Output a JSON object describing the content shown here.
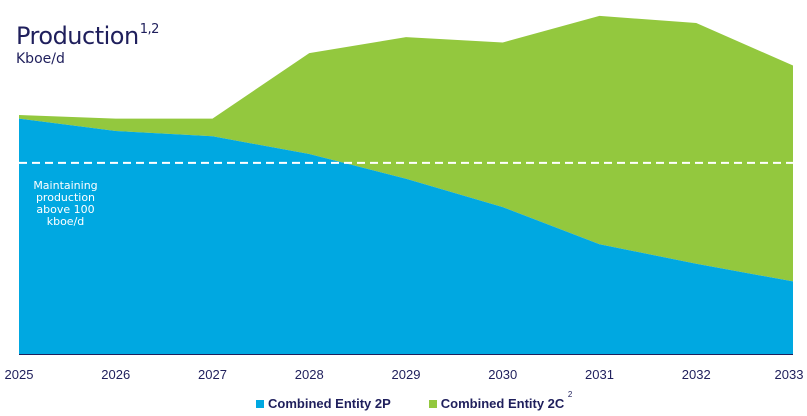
{
  "chart_data": {
    "type": "area",
    "stacked": true,
    "title": "Production",
    "title_superscript": "1,2",
    "subtitle": "Kboe/d",
    "x": [
      "2025",
      "2026",
      "2027",
      "2028",
      "2029",
      "2030",
      "2031",
      "2032",
      "2033"
    ],
    "series": [
      {
        "name": "Combined Entity 2P",
        "color": "#00a8e1",
        "values": [
          133,
          126,
          123,
          113,
          99,
          83,
          62,
          51,
          41
        ]
      },
      {
        "name": "Combined Entity 2C",
        "color": "#93c83e",
        "values": [
          2,
          7,
          10,
          57,
          80,
          93,
          129,
          136,
          122
        ]
      }
    ],
    "ylim": [
      0,
      200
    ],
    "reference_line": {
      "value": 108,
      "style": "dashed",
      "color": "#ffffff"
    },
    "annotation": "Maintaining production above 100 kboe/d",
    "grid": false,
    "legend_position": "bottom",
    "legend_superscript": "2"
  }
}
